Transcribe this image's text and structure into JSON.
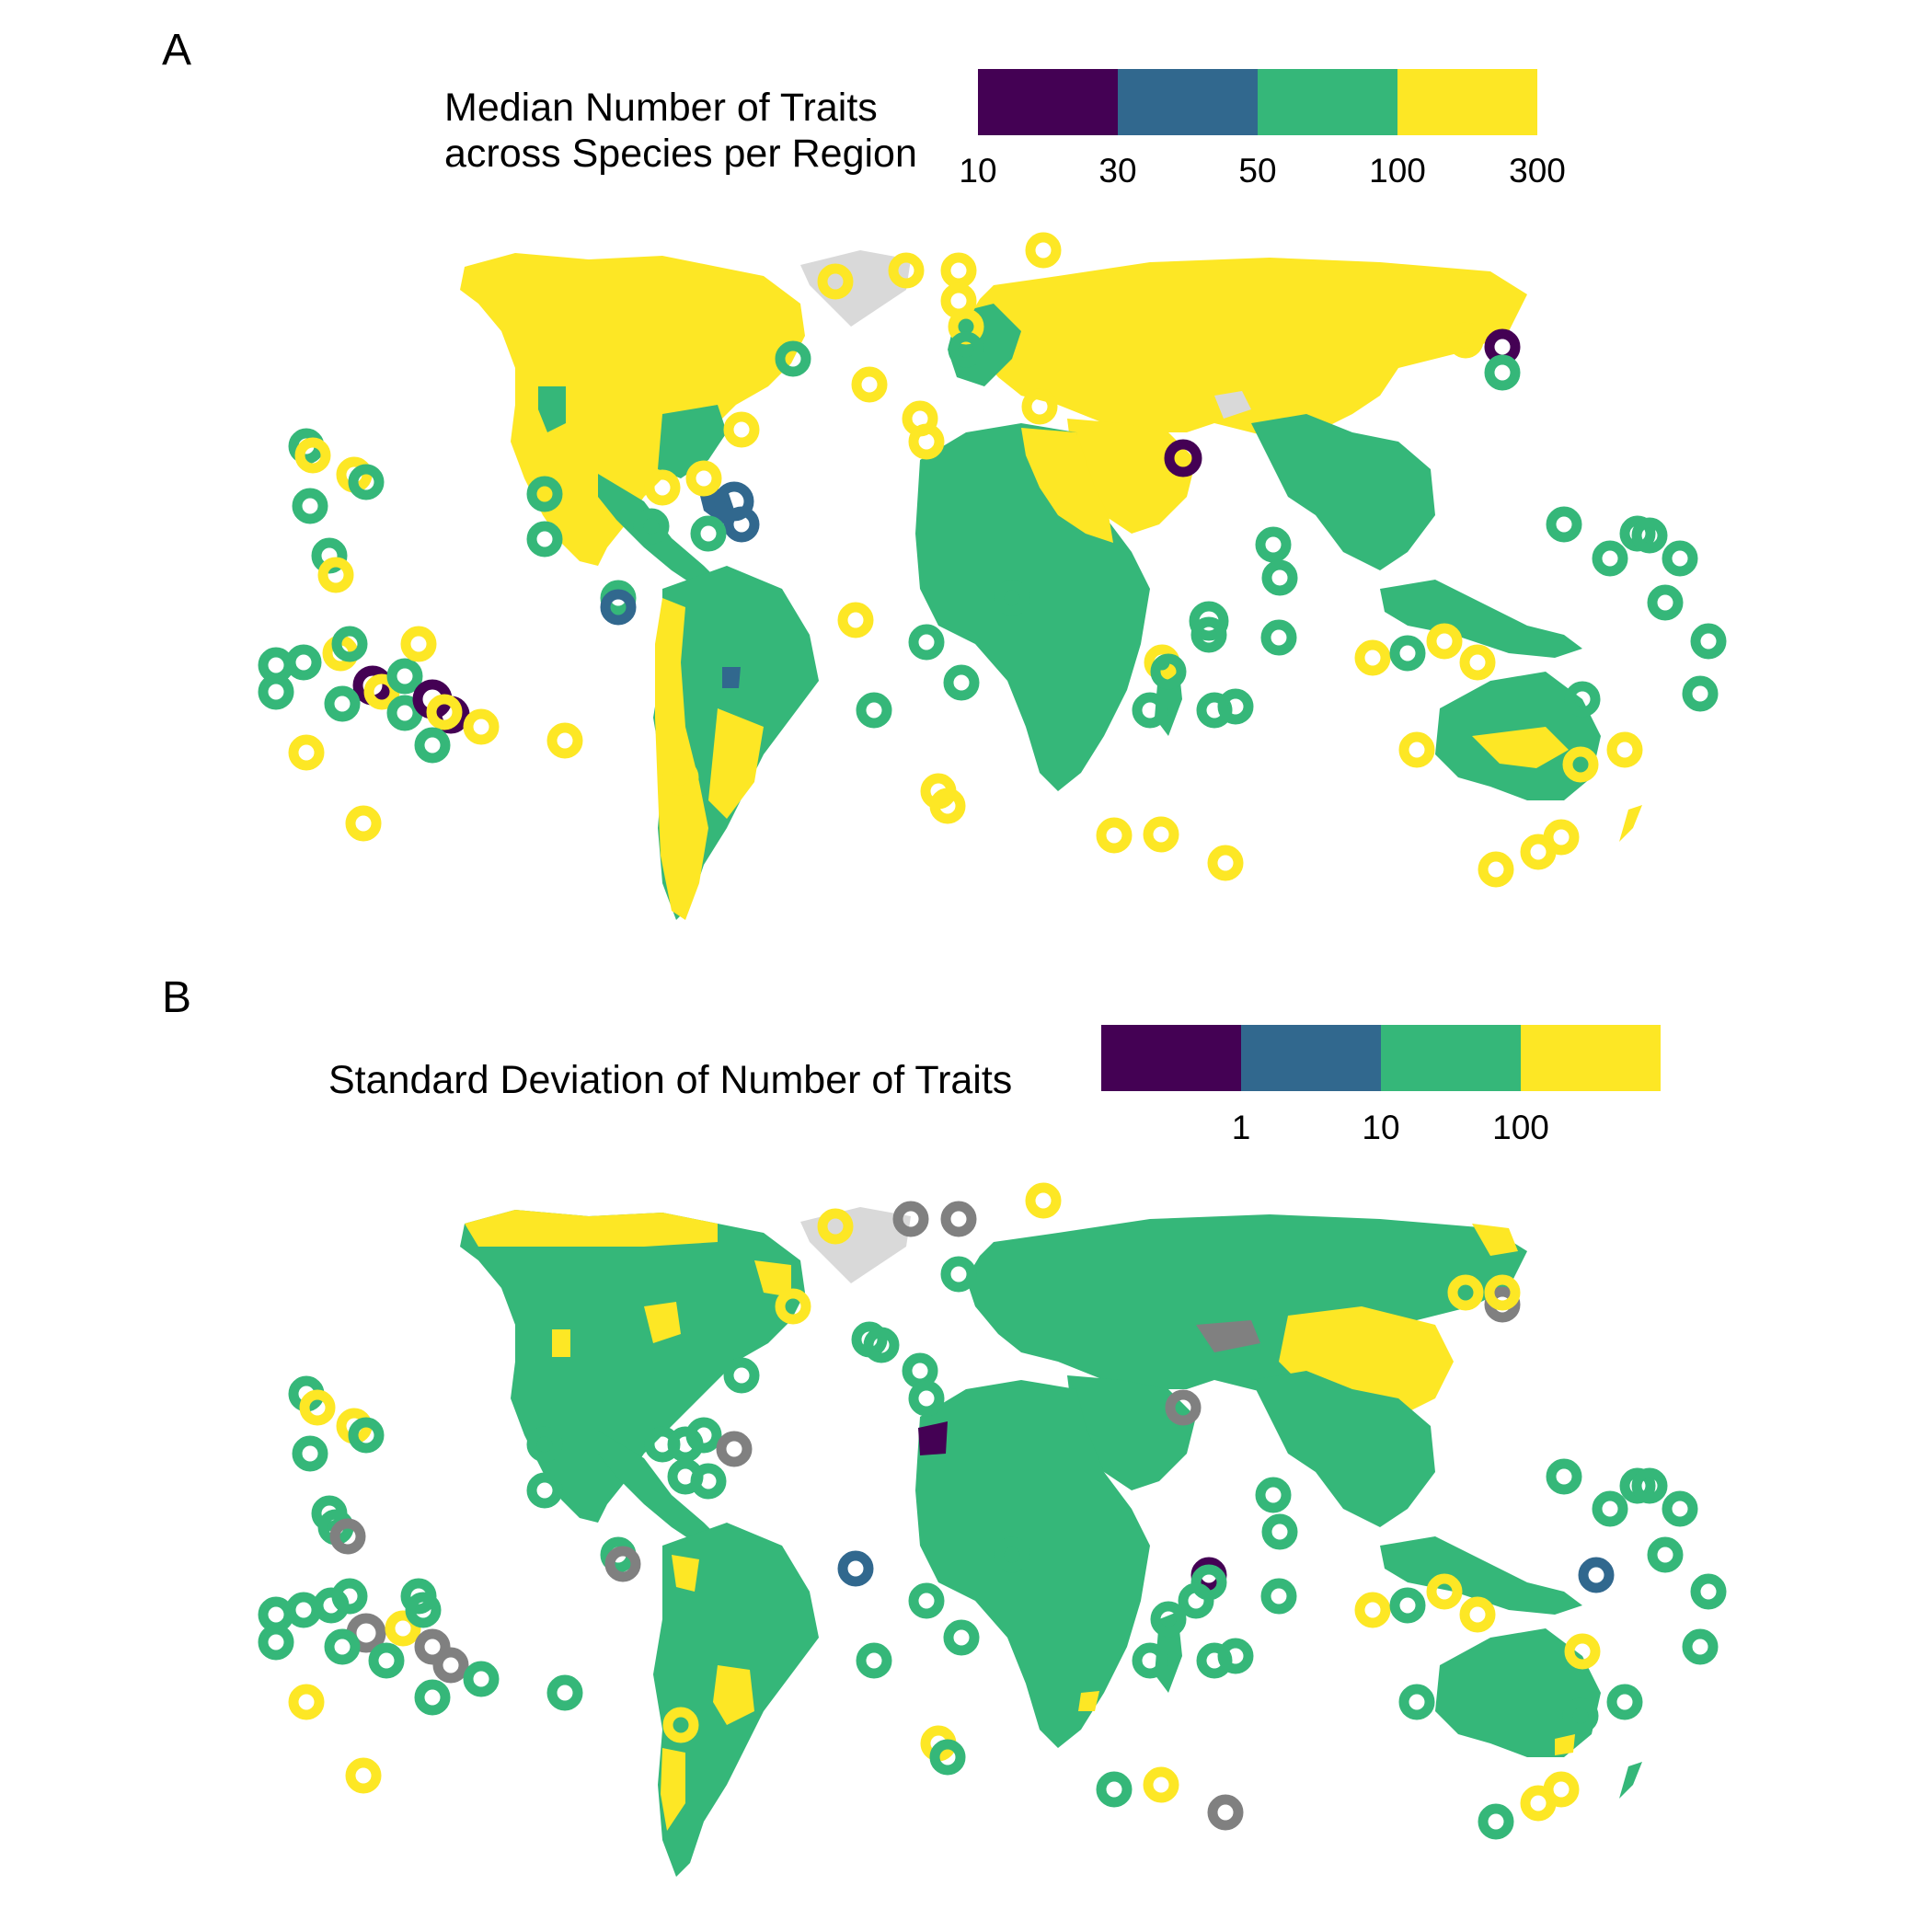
{
  "palette": {
    "c1": "#440154",
    "c2": "#31688E",
    "c3": "#35B779",
    "c4": "#FDE725",
    "na_land": "#D9D9D9",
    "na_ring": "#808080"
  },
  "panels": [
    {
      "tag": "A",
      "legend": {
        "title_line1": "Median Number of Traits",
        "title_line2": "across Species per Region",
        "bins": [
          "#440154",
          "#31688E",
          "#35B779",
          "#FDE725"
        ],
        "ticks": [
          "10",
          "30",
          "50",
          "100",
          "300"
        ]
      }
    },
    {
      "tag": "B",
      "legend": {
        "title_line1": "Standard Deviation of Number of Traits",
        "bins": [
          "#440154",
          "#31688E",
          "#35B779",
          "#FDE725"
        ],
        "ticks": [
          "1",
          "10",
          "100"
        ]
      }
    }
  ]
}
